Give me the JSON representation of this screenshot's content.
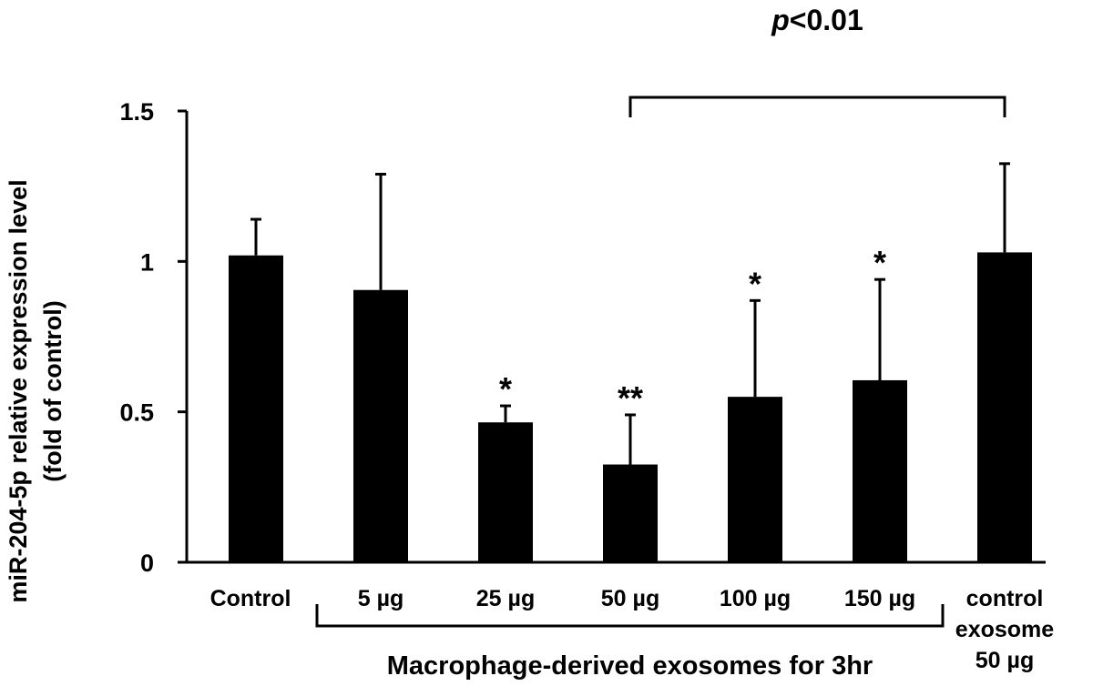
{
  "chart_data": {
    "type": "bar",
    "ylabel_line1": "miR-204-5p relative expression level",
    "ylabel_line2": "(fold of control)",
    "ylim": [
      0,
      1.5
    ],
    "yticks": [
      {
        "value": 0,
        "label": "0"
      },
      {
        "value": 0.5,
        "label": "0.5"
      },
      {
        "value": 1,
        "label": "1"
      },
      {
        "value": 1.5,
        "label": "1.5"
      }
    ],
    "categories": [
      "Control",
      "5 µg",
      "25 µg",
      "50 µg",
      "100 µg",
      "150 µg",
      "control exosome 50 µg"
    ],
    "category_lines": [
      [
        "Control"
      ],
      [
        "5 µg"
      ],
      [
        "25 µg"
      ],
      [
        "50 µg"
      ],
      [
        "100 µg"
      ],
      [
        "150 µg"
      ],
      [
        "control",
        "exosome",
        "50 µg"
      ]
    ],
    "values": [
      1.02,
      0.905,
      0.465,
      0.325,
      0.55,
      0.605,
      1.03
    ],
    "error_upper": [
      0.12,
      0.385,
      0.055,
      0.165,
      0.32,
      0.335,
      0.295
    ],
    "significance": [
      "",
      "",
      "*",
      "**",
      "*",
      "*",
      ""
    ],
    "group_label": "Macrophage-derived exosomes for 3hr",
    "group_categories": [
      1,
      5
    ],
    "comparison": {
      "from": 3,
      "to": 6,
      "label_italic": "p",
      "label_rest": "<0.01"
    },
    "bar_color": "#000000",
    "grid": false
  }
}
